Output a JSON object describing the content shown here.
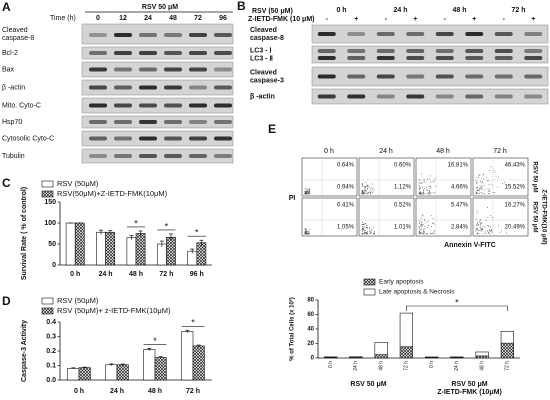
{
  "panel_labels": [
    "A",
    "B",
    "C",
    "D",
    "E"
  ],
  "blot_a": {
    "treatment": "RSV 50 μM",
    "time_label": "Time (h)",
    "times": [
      "0",
      "12",
      "24",
      "48",
      "72",
      "96"
    ],
    "rows": [
      [
        "Cleaved",
        "caspase-8"
      ],
      [
        "Bcl-2"
      ],
      [
        "Bax"
      ],
      [
        "β -actin"
      ],
      [
        "Mito. Cyto-C"
      ],
      [
        "Hsp70"
      ],
      [
        "Cytosolic Cyto-C"
      ],
      [
        "Tubulin"
      ]
    ]
  },
  "blot_b": {
    "treatment": "RSV (50 μM)",
    "inhibitor": "Z-IETD-FMK (10 μM)",
    "times": [
      "0 h",
      "24 h",
      "48 h",
      "72 h"
    ],
    "signs": [
      "-",
      "+",
      "-",
      "+",
      "-",
      "+",
      "-",
      "+"
    ],
    "rows": [
      [
        "Cleaved",
        "caspase-8"
      ],
      [
        "LC3 - Ⅰ",
        "LC3 - Ⅱ"
      ],
      [
        "Cleaved",
        "caspase-3"
      ],
      [
        "β -actin"
      ]
    ]
  },
  "flow": {
    "columns": [
      "0 h",
      "24 h",
      "48 h",
      "72 h"
    ],
    "y_label": "PI",
    "x_label": "Annexin V-FITC",
    "rows": [
      {
        "label": [
          "RSV 50 μM"
        ],
        "upper": [
          "0.64%",
          "0.60%",
          "16.81%",
          "46.43%"
        ],
        "lower": [
          "0.94%",
          "1.12%",
          "4.66%",
          "15.52%"
        ]
      },
      {
        "label": [
          "RSV 50 μM",
          "Z-IETD-FMK(10 μM)"
        ],
        "upper": [
          "0.41%",
          "0.52%",
          "5.47%",
          "16.27%"
        ],
        "lower": [
          "1.05%",
          "1.01%",
          "2.84%",
          "20.49%"
        ]
      }
    ]
  },
  "chart_data": [
    {
      "type": "bar",
      "y_label": "Survival Rate ( % of control)",
      "categories": [
        "0 h",
        "24 h",
        "48 h",
        "72 h",
        "96 h"
      ],
      "series": [
        {
          "name": "RSV (50μM)",
          "color": "#ffffff",
          "values": [
            100,
            78,
            65,
            50,
            33
          ],
          "errors": [
            0,
            5,
            5,
            7,
            5
          ]
        },
        {
          "name": "RSV(50μM)+Z-IETD-FMK(10μM)",
          "color": "#ffffff",
          "hatch": "cross",
          "values": [
            100,
            78,
            75,
            66,
            53
          ],
          "errors": [
            0,
            4,
            6,
            8,
            6
          ]
        }
      ],
      "ylim": [
        0,
        150
      ],
      "yticks": [
        0,
        50,
        100,
        150
      ],
      "annotations": [
        {
          "text": "*",
          "x": "48 h"
        },
        {
          "text": "*",
          "x": "72 h"
        },
        {
          "text": "*",
          "x": "96 h"
        }
      ]
    },
    {
      "type": "bar",
      "y_label": "Caspase-3 Activity",
      "categories": [
        "0 h",
        "24 h",
        "48 h",
        "72 h"
      ],
      "series": [
        {
          "name": "RSV (50μM)",
          "color": "#ffffff",
          "values": [
            0.08,
            0.105,
            0.21,
            0.335
          ],
          "errors": [
            0.004,
            0.006,
            0.008,
            0.008
          ]
        },
        {
          "name": "RSV (50μM)+ z-IETD-FMK(10μM)",
          "color": "#ffffff",
          "hatch": "cross",
          "values": [
            0.085,
            0.105,
            0.155,
            0.235
          ],
          "errors": [
            0.004,
            0.005,
            0.006,
            0.006
          ]
        }
      ],
      "ylim": [
        0,
        0.4
      ],
      "yticks": [
        {
          "value": 0,
          "label": "0.0"
        },
        0.1,
        0.2,
        0.3,
        0.4
      ],
      "annotations": [
        {
          "text": "*",
          "x": "48 h"
        },
        {
          "text": "*",
          "x": "72 h"
        }
      ]
    },
    {
      "type": "bar",
      "stacked": true,
      "y_label": "% of Total Cells (x 10²)",
      "categories": [
        "0 h",
        "24 h",
        "48 h",
        "72 h",
        "0 h",
        "24 h",
        "48 h",
        "72 h"
      ],
      "groups": [
        [
          "RSV 50 μM"
        ],
        [
          "RSV 50 μM",
          "Z-IETD-FMK (10μM)"
        ]
      ],
      "series": [
        {
          "name": "Early apoptosis",
          "color": "#ffffff",
          "hatch": "cross",
          "values": [
            0.94,
            1.12,
            4.66,
            15.52,
            1.05,
            1.01,
            2.84,
            20.49
          ]
        },
        {
          "name": "Late apoptosis & Necrosis",
          "color": "#ffffff",
          "values": [
            0.64,
            0.6,
            16.81,
            46.43,
            0.41,
            0.52,
            5.47,
            16.27
          ]
        }
      ],
      "ylim": [
        0,
        80
      ],
      "yticks": [
        0,
        20,
        40,
        60,
        80
      ],
      "annotations": [
        {
          "text": "*"
        }
      ]
    }
  ]
}
